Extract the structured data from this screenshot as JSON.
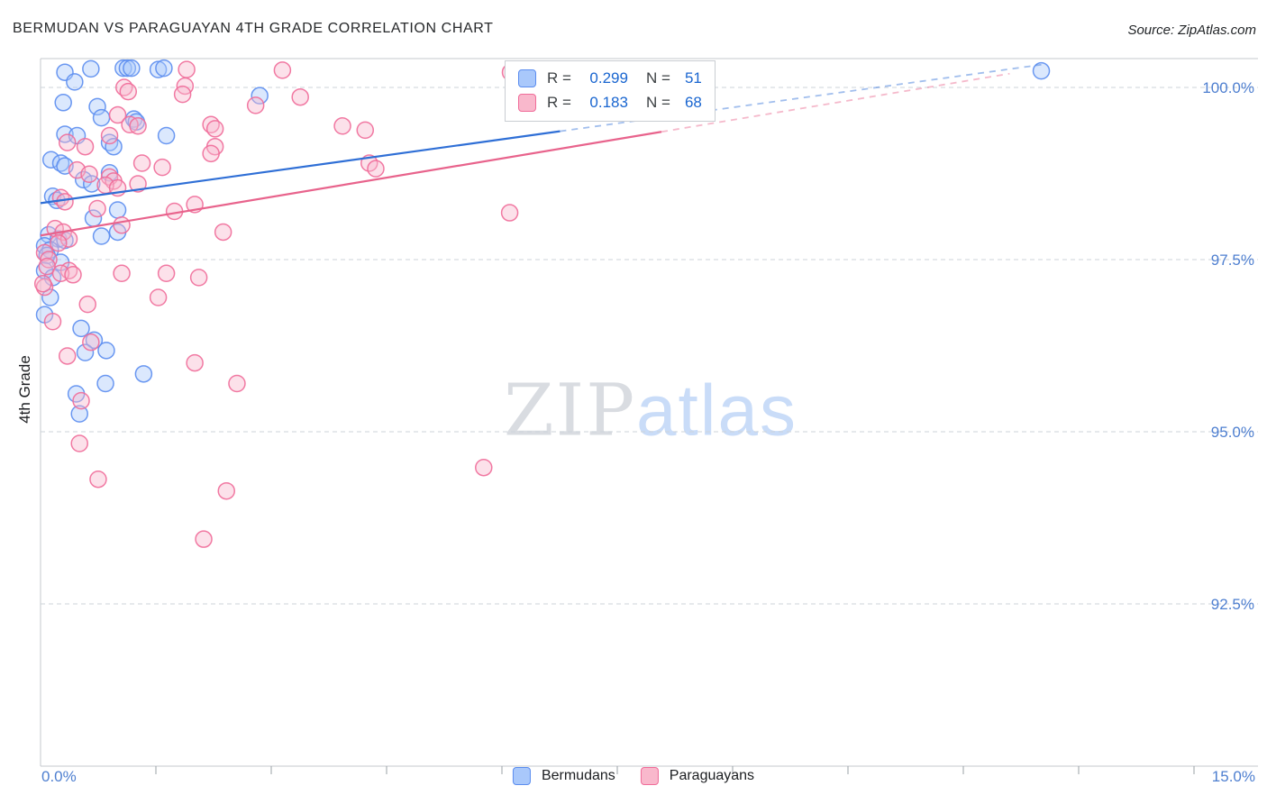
{
  "title": "BERMUDAN VS PARAGUAYAN 4TH GRADE CORRELATION CHART",
  "source": "Source: ZipAtlas.com",
  "watermark": {
    "part1": "ZIP",
    "part2": "atlas"
  },
  "y_axis_title": "4th Grade",
  "x_axis": {
    "min_label": "0.0%",
    "max_label": "15.0%"
  },
  "legend_box": {
    "rows": [
      {
        "series": "Bermudans",
        "r_label": "R =",
        "r_value": "0.299",
        "n_label": "N =",
        "n_value": "51"
      },
      {
        "series": "Paraguayans",
        "r_label": "R =",
        "r_value": "0.183",
        "n_label": "N =",
        "n_value": "68"
      }
    ]
  },
  "bottom_legend": [
    {
      "label": "Bermudans"
    },
    {
      "label": "Paraguayans"
    }
  ],
  "colors": {
    "blue_stroke": "#5b8def",
    "blue_fill": "#a9c8fb",
    "blue_trend": "#2f6fd6",
    "pink_stroke": "#f06c99",
    "pink_fill": "#f9b8cc",
    "pink_trend": "#e8638c",
    "axis_label": "#4e7fd0",
    "gridline": "#cdd3da"
  },
  "chart_data": {
    "type": "scatter",
    "title": "BERMUDAN VS PARAGUAYAN 4TH GRADE CORRELATION CHART",
    "xlabel": "",
    "ylabel": "4th Grade",
    "x_range": [
      0,
      15
    ],
    "x_tick_labels": [
      "0.0%",
      "15.0%"
    ],
    "grid": true,
    "legend_position": "top-center",
    "y_ticks": [
      {
        "label": "100.0%",
        "value": 100.0
      },
      {
        "label": "97.5%",
        "value": 97.5
      },
      {
        "label": "95.0%",
        "value": 95.0
      },
      {
        "label": "92.5%",
        "value": 92.5
      }
    ],
    "series": [
      {
        "name": "Bermudans",
        "R": 0.299,
        "N": 51,
        "stroke": "#5b8def",
        "fill": "#a9c8fb",
        "trend_color": "#2f6fd6",
        "trend": {
          "x_start": 0,
          "y_start": 98.32,
          "x_end": 12.33,
          "y_end": 100.33,
          "solid_until": 6.4
        },
        "points": [
          [
            0.3,
            100.22
          ],
          [
            0.62,
            100.27
          ],
          [
            1.02,
            100.28
          ],
          [
            1.07,
            100.28
          ],
          [
            1.12,
            100.28
          ],
          [
            1.45,
            100.26
          ],
          [
            1.52,
            100.28
          ],
          [
            0.42,
            100.08
          ],
          [
            0.28,
            99.78
          ],
          [
            0.7,
            99.72
          ],
          [
            2.7,
            99.88
          ],
          [
            0.75,
            99.56
          ],
          [
            1.15,
            99.54
          ],
          [
            1.18,
            99.5
          ],
          [
            0.3,
            99.32
          ],
          [
            0.45,
            99.3
          ],
          [
            1.55,
            99.3
          ],
          [
            0.85,
            99.2
          ],
          [
            0.9,
            99.14
          ],
          [
            0.13,
            98.95
          ],
          [
            0.25,
            98.9
          ],
          [
            0.3,
            98.86
          ],
          [
            0.85,
            98.76
          ],
          [
            0.53,
            98.66
          ],
          [
            0.63,
            98.6
          ],
          [
            0.15,
            98.42
          ],
          [
            0.2,
            98.36
          ],
          [
            0.95,
            98.22
          ],
          [
            0.65,
            98.1
          ],
          [
            0.1,
            97.86
          ],
          [
            0.22,
            97.8
          ],
          [
            0.3,
            97.78
          ],
          [
            0.95,
            97.9
          ],
          [
            0.75,
            97.84
          ],
          [
            0.05,
            97.7
          ],
          [
            0.12,
            97.64
          ],
          [
            0.08,
            97.56
          ],
          [
            0.25,
            97.46
          ],
          [
            0.05,
            97.34
          ],
          [
            0.15,
            97.24
          ],
          [
            0.12,
            96.95
          ],
          [
            0.05,
            96.7
          ],
          [
            0.5,
            96.5
          ],
          [
            0.66,
            96.33
          ],
          [
            0.55,
            96.15
          ],
          [
            0.81,
            96.18
          ],
          [
            1.27,
            95.84
          ],
          [
            0.8,
            95.7
          ],
          [
            0.44,
            95.55
          ],
          [
            0.48,
            95.26
          ],
          [
            12.33,
            100.24
          ]
        ]
      },
      {
        "name": "Paraguayans",
        "R": 0.183,
        "N": 68,
        "stroke": "#f06c99",
        "fill": "#f9b8cc",
        "trend_color": "#e8638c",
        "trend": {
          "x_start": 0,
          "y_start": 97.85,
          "x_end": 11.94,
          "y_end": 100.2,
          "solid_until": 7.65
        },
        "points": [
          [
            1.03,
            100.0
          ],
          [
            1.08,
            99.94
          ],
          [
            1.8,
            100.26
          ],
          [
            1.78,
            100.02
          ],
          [
            2.98,
            100.25
          ],
          [
            5.79,
            100.22
          ],
          [
            0.95,
            99.6
          ],
          [
            1.75,
            99.9
          ],
          [
            3.2,
            99.86
          ],
          [
            2.65,
            99.74
          ],
          [
            1.1,
            99.46
          ],
          [
            1.2,
            99.44
          ],
          [
            2.1,
            99.46
          ],
          [
            2.15,
            99.4
          ],
          [
            3.72,
            99.44
          ],
          [
            4.0,
            99.38
          ],
          [
            0.33,
            99.2
          ],
          [
            0.55,
            99.14
          ],
          [
            2.15,
            99.14
          ],
          [
            2.1,
            99.04
          ],
          [
            1.25,
            98.9
          ],
          [
            1.5,
            98.84
          ],
          [
            0.45,
            98.8
          ],
          [
            0.6,
            98.74
          ],
          [
            4.05,
            98.9
          ],
          [
            4.13,
            98.82
          ],
          [
            0.85,
            98.7
          ],
          [
            0.9,
            98.64
          ],
          [
            0.8,
            98.58
          ],
          [
            1.2,
            98.6
          ],
          [
            0.95,
            98.54
          ],
          [
            0.25,
            98.4
          ],
          [
            0.3,
            98.34
          ],
          [
            1.9,
            98.3
          ],
          [
            0.7,
            98.24
          ],
          [
            1.65,
            98.2
          ],
          [
            5.78,
            98.18
          ],
          [
            0.18,
            97.95
          ],
          [
            0.28,
            97.9
          ],
          [
            1.0,
            98.0
          ],
          [
            2.25,
            97.9
          ],
          [
            0.35,
            97.8
          ],
          [
            0.22,
            97.74
          ],
          [
            0.05,
            97.6
          ],
          [
            0.1,
            97.5
          ],
          [
            0.08,
            97.4
          ],
          [
            0.35,
            97.34
          ],
          [
            0.25,
            97.3
          ],
          [
            0.4,
            97.28
          ],
          [
            1.0,
            97.3
          ],
          [
            1.55,
            97.3
          ],
          [
            1.95,
            97.24
          ],
          [
            0.05,
            97.1
          ],
          [
            1.45,
            96.95
          ],
          [
            0.58,
            96.85
          ],
          [
            0.15,
            96.6
          ],
          [
            0.85,
            99.3
          ],
          [
            0.03,
            97.15
          ],
          [
            0.62,
            96.3
          ],
          [
            0.33,
            96.1
          ],
          [
            1.9,
            96.0
          ],
          [
            2.42,
            95.7
          ],
          [
            0.5,
            95.45
          ],
          [
            0.48,
            94.83
          ],
          [
            0.71,
            94.31
          ],
          [
            5.46,
            94.48
          ],
          [
            2.29,
            94.14
          ],
          [
            2.01,
            93.44
          ]
        ]
      }
    ]
  }
}
